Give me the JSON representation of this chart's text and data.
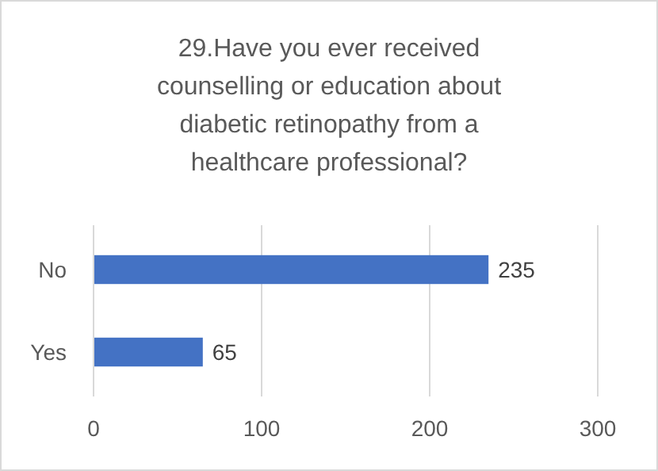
{
  "chart_data": {
    "type": "bar",
    "orientation": "horizontal",
    "title": "29.Have you ever received counselling or education about diabetic retinopathy from a healthcare professional?",
    "categories": [
      "No",
      "Yes"
    ],
    "values": [
      235,
      65
    ],
    "color": "#4472c4",
    "xlim": [
      0,
      300
    ],
    "xticks": [
      0,
      100,
      200,
      300
    ],
    "grid": "x",
    "data_labels": true
  }
}
